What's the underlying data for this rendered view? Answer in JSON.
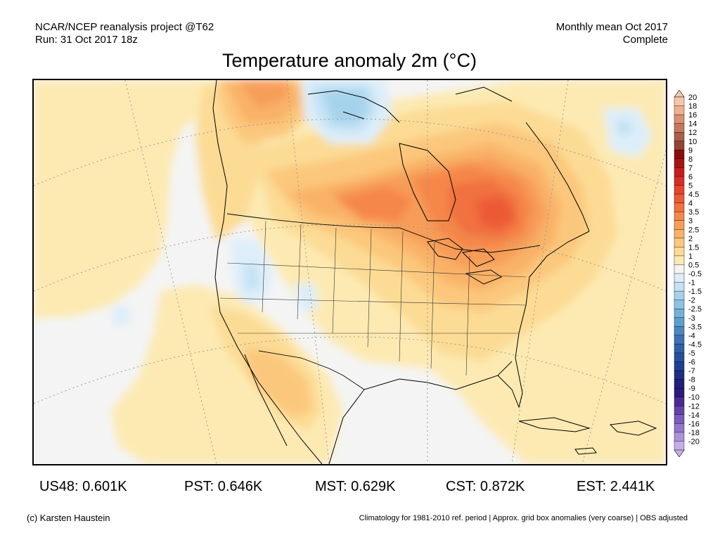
{
  "header": {
    "source_line1": "NCAR/NCEP reanalysis project @T62",
    "source_line2": "Run: 31 Oct 2017 18z",
    "period_line1": "Monthly mean Oct 2017",
    "period_line2": "Complete"
  },
  "title": "Temperature anomaly 2m (°C)",
  "colorbar": {
    "levels": [
      "20",
      "18",
      "16",
      "14",
      "12",
      "10",
      "9",
      "8",
      "7",
      "6",
      "5",
      "4.5",
      "4",
      "3.5",
      "3",
      "2.5",
      "2",
      "1.5",
      "1",
      "0.5",
      "-0.5",
      "-1",
      "-1.5",
      "-2",
      "-2.5",
      "-3",
      "-3.5",
      "-4",
      "-4.5",
      "-5",
      "-6",
      "-7",
      "-8",
      "-9",
      "-10",
      "-12",
      "-14",
      "-16",
      "-18",
      "-20"
    ],
    "colors": [
      "#f5c7a8",
      "#efb08e",
      "#d99073",
      "#c4785d",
      "#a95f48",
      "#8f4632",
      "#8a0d0d",
      "#a81414",
      "#c81d1d",
      "#d92d26",
      "#e5442f",
      "#ec5a36",
      "#f1713f",
      "#f5874a",
      "#f79d58",
      "#f9b268",
      "#fbc77c",
      "#fcdb94",
      "#fdeab2",
      "#f4f4f4",
      "#ddeefa",
      "#c3e2f4",
      "#a6d3ec",
      "#8cc3e3",
      "#73b1d8",
      "#5c9ecd",
      "#4b88c0",
      "#3c72b3",
      "#3160a8",
      "#26509d",
      "#203f92",
      "#1c2f87",
      "#1f217a",
      "#2e1a7a",
      "#4a2b91",
      "#6243a8",
      "#7a5cbc",
      "#9376cc",
      "#ab92db",
      "#c4afe8"
    ]
  },
  "stats": [
    {
      "label": "US48: 0.601K"
    },
    {
      "label": "PST: 0.646K"
    },
    {
      "label": "MST: 0.629K"
    },
    {
      "label": "CST: 0.872K"
    },
    {
      "label": "EST: 2.441K"
    }
  ],
  "footer": {
    "credit": "(c) Karsten Haustein",
    "note": "Climatology for 1981-2010 ref. period | Approx. grid box anomalies (very coarse) | OBS adjusted"
  }
}
